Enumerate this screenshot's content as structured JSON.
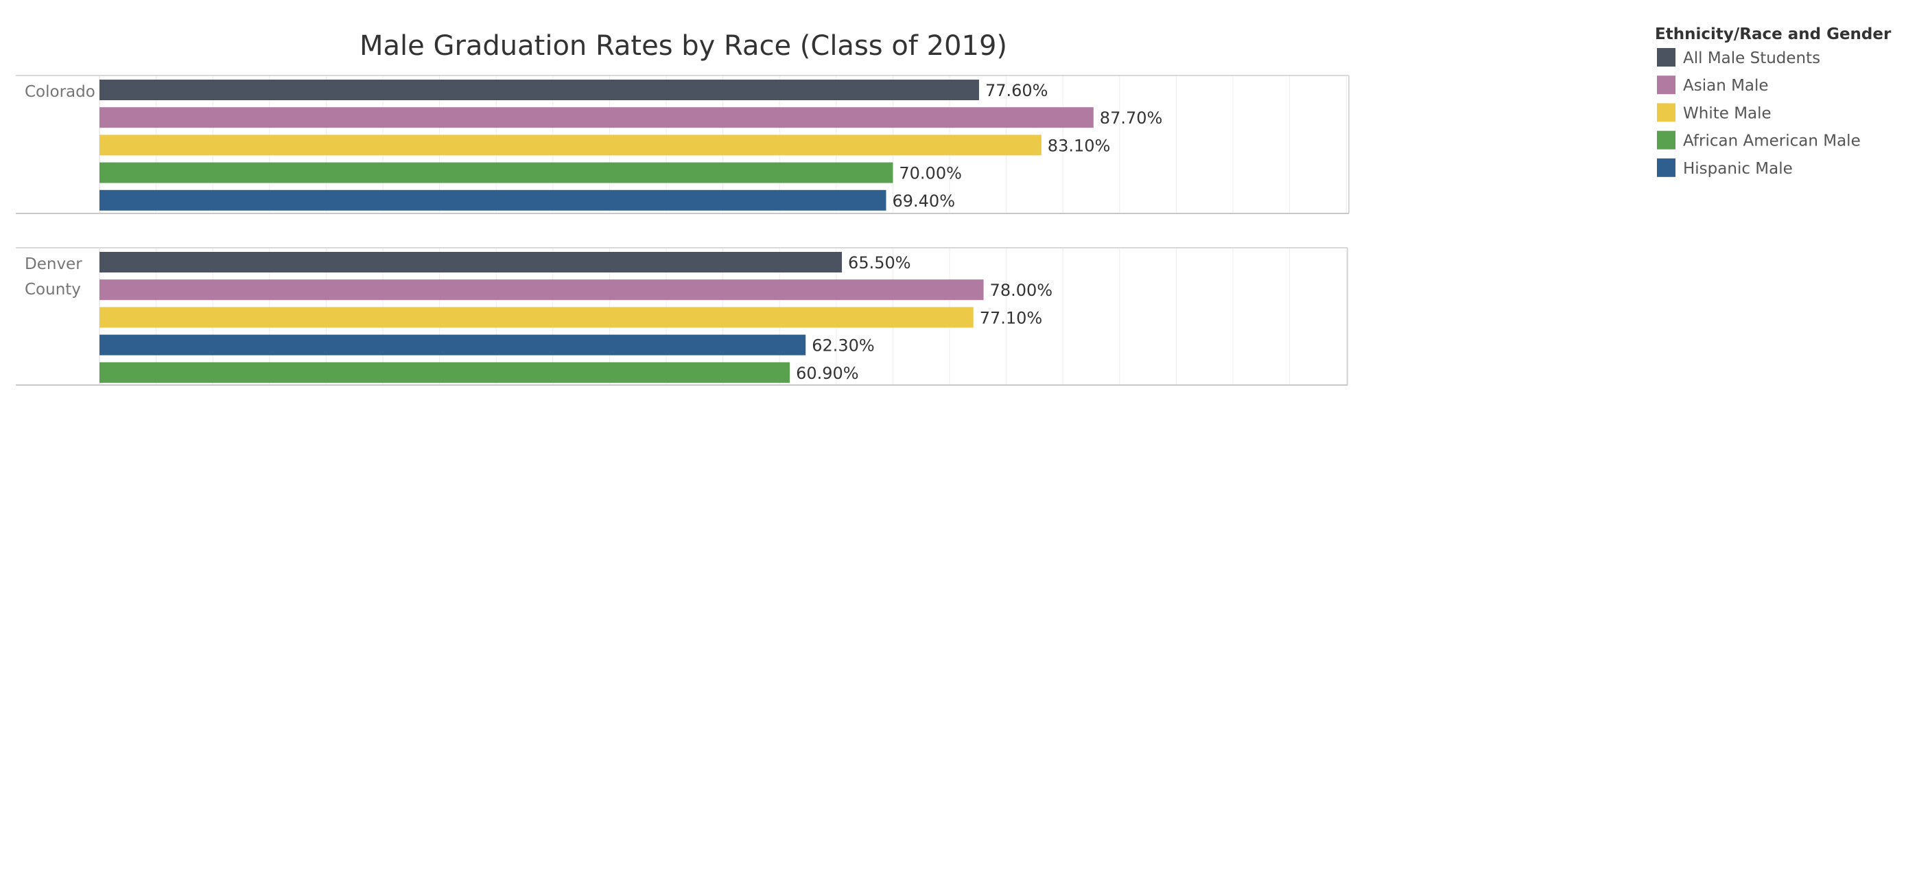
{
  "chart_data": {
    "type": "bar",
    "orientation": "horizontal",
    "title": "Male Graduation Rates by Race (Class of 2019)",
    "xlim": [
      0,
      100
    ],
    "value_suffix": "%",
    "grid": true,
    "legend": {
      "title": "Ethnicity/Race and Gender",
      "placement": "top-right",
      "entries": [
        {
          "name": "All Male Students",
          "color": "#4b5361"
        },
        {
          "name": "Asian Male",
          "color": "#b07aa1"
        },
        {
          "name": "White Male",
          "color": "#edc948"
        },
        {
          "name": "African American Male",
          "color": "#59a14f"
        },
        {
          "name": "Hispanic Male",
          "color": "#2f5f8e"
        }
      ]
    },
    "panels": [
      {
        "label": [
          "Colorado"
        ],
        "bars": [
          {
            "series": "All Male Students",
            "value": 77.6,
            "label": "77.60%"
          },
          {
            "series": "Asian Male",
            "value": 87.7,
            "label": "87.70%"
          },
          {
            "series": "White Male",
            "value": 83.1,
            "label": "83.10%"
          },
          {
            "series": "African American Male",
            "value": 70.0,
            "label": "70.00%"
          },
          {
            "series": "Hispanic Male",
            "value": 69.4,
            "label": "69.40%"
          }
        ]
      },
      {
        "label": [
          "Denver",
          "County"
        ],
        "bars": [
          {
            "series": "All Male Students",
            "value": 65.5,
            "label": "65.50%"
          },
          {
            "series": "Asian Male",
            "value": 78.0,
            "label": "78.00%"
          },
          {
            "series": "White Male",
            "value": 77.1,
            "label": "77.10%"
          },
          {
            "series": "Hispanic Male",
            "value": 62.3,
            "label": "62.30%"
          },
          {
            "series": "African American Male",
            "value": 60.9,
            "label": "60.90%"
          }
        ]
      }
    ]
  }
}
